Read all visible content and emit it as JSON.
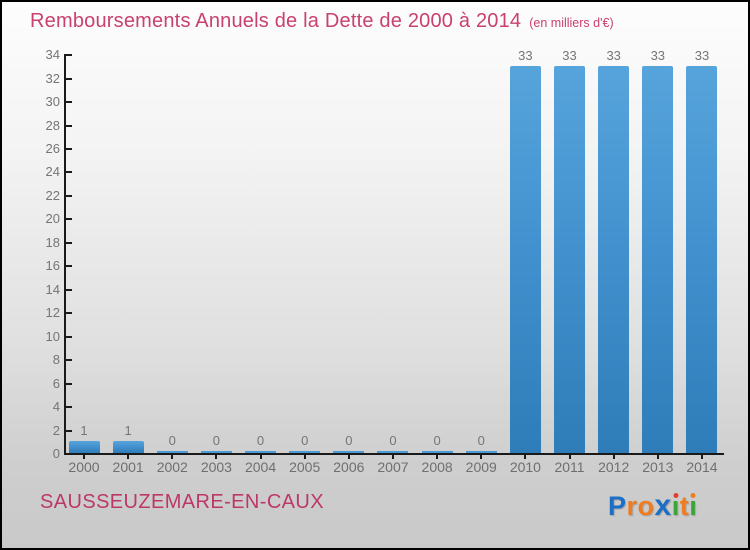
{
  "title": {
    "text": "Remboursements Annuels de la Dette de 2000 à 2014",
    "subtitle": "(en milliers d'€)"
  },
  "footer": {
    "commune": "SAUSSEUZEMARE-EN-CAUX"
  },
  "logo": {
    "name": "Proxiti",
    "letters": [
      {
        "char": "P",
        "color": "#1c6fc4"
      },
      {
        "char": "r",
        "color": "#f07c20"
      },
      {
        "char": "o",
        "color": "#f07c20"
      },
      {
        "char": "x",
        "color": "#1c6fc4",
        "big": true
      },
      {
        "char": "ı",
        "color": "#3aa635",
        "dot_color": "#e23d2e"
      },
      {
        "char": "t",
        "color": "#f07c20"
      },
      {
        "char": "ı",
        "color": "#3aa635",
        "dot_color": "#f07c20"
      }
    ]
  },
  "colors": {
    "accent_pink": "#c8416f",
    "commune_pink": "#bd3768",
    "bar_blue_top": "#57a4dc",
    "bar_blue_bottom": "#2e7cb8",
    "axis_black": "#1a1a1a",
    "label_gray": "#757575"
  },
  "chart_data": {
    "type": "bar",
    "title": "Remboursements Annuels de la Dette de 2000 à 2014",
    "subtitle": "(en milliers d'€)",
    "categories": [
      "2000",
      "2001",
      "2002",
      "2003",
      "2004",
      "2005",
      "2006",
      "2007",
      "2008",
      "2009",
      "2010",
      "2011",
      "2012",
      "2013",
      "2014"
    ],
    "values": [
      1,
      1,
      0,
      0,
      0,
      0,
      0,
      0,
      0,
      0,
      33,
      33,
      33,
      33,
      33
    ],
    "value_labels": [
      "1",
      "1",
      "0",
      "0",
      "0",
      "0",
      "0",
      "0",
      "0",
      "0",
      "33",
      "33",
      "33",
      "33",
      "33"
    ],
    "xlabel": "",
    "ylabel": "",
    "ylim": [
      0,
      34
    ],
    "ytick_step": 2,
    "grid": false,
    "legend": false
  }
}
